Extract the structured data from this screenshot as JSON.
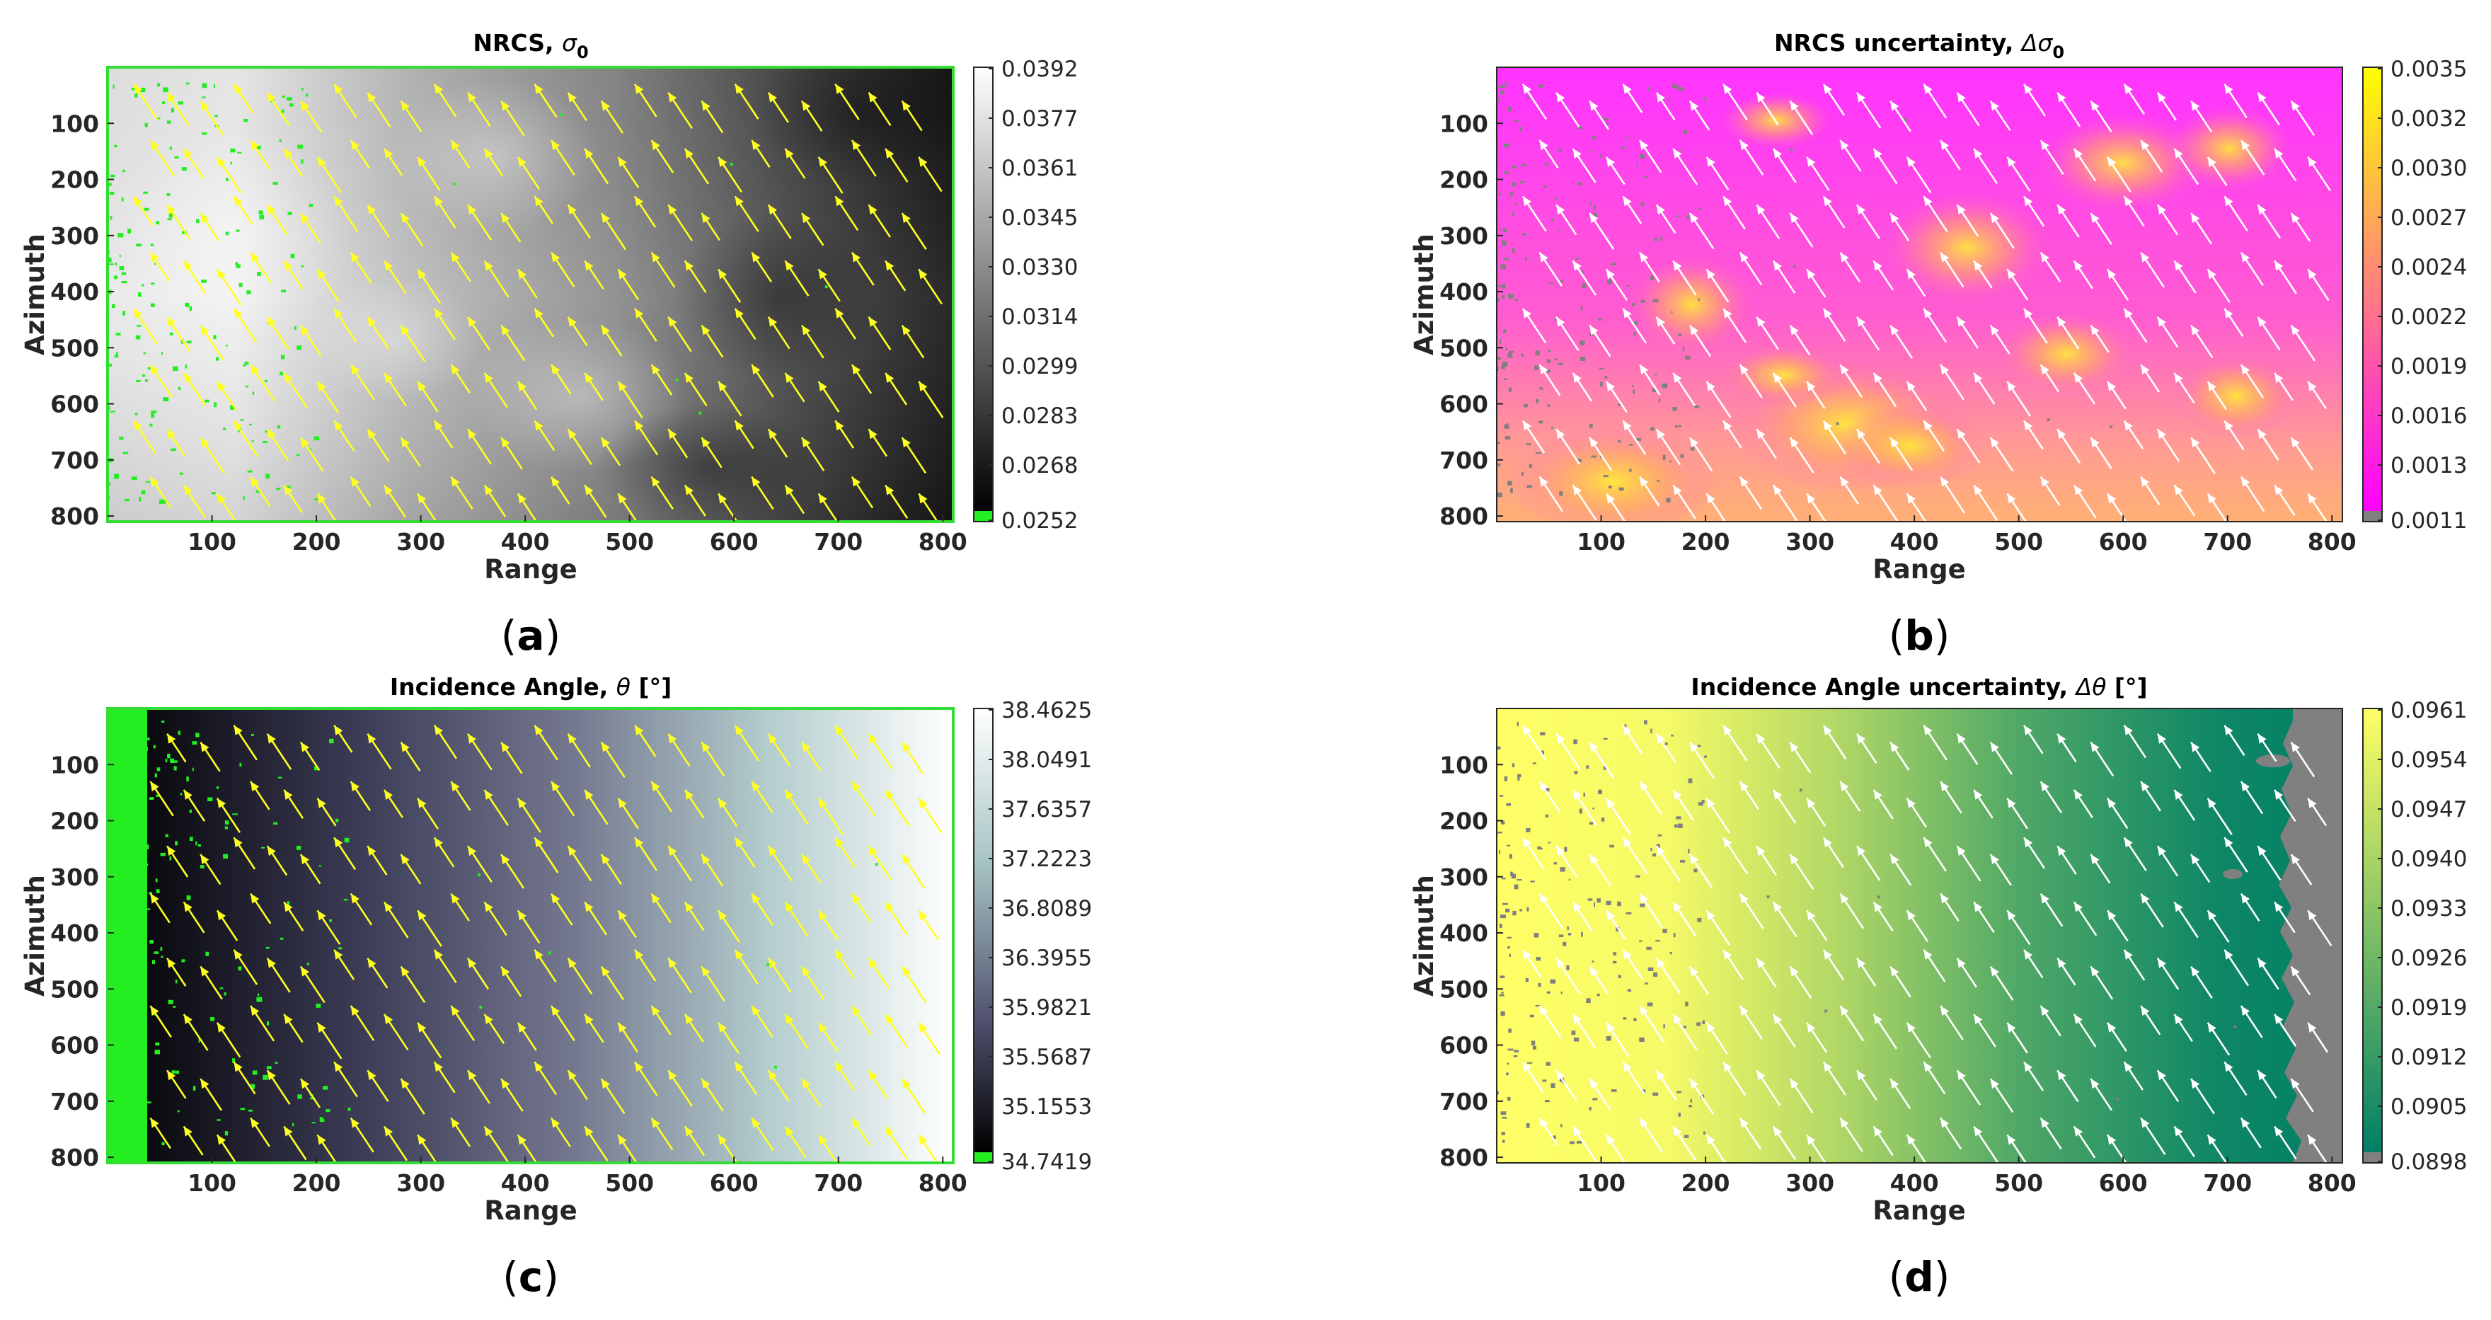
{
  "chart_data": [
    {
      "panel": "a",
      "type": "heatmap",
      "title": "NRCS, σ0",
      "title_main": "NRCS, ",
      "title_symbol": "σ",
      "title_sub": "0",
      "xlabel": "Range",
      "ylabel": "Azimuth",
      "xlim": [
        0,
        810
      ],
      "ylim": [
        0,
        810
      ],
      "xticks": [
        100,
        200,
        300,
        400,
        500,
        600,
        700,
        800
      ],
      "yticks": [
        100,
        200,
        300,
        400,
        500,
        600,
        700,
        800
      ],
      "colormap": "gray",
      "arrow_color": "#ffff22",
      "flag_color": "#22ee22",
      "border_color": "#33dd33",
      "colorbar": {
        "ticks": [
          "0.0392",
          "0.0377",
          "0.0361",
          "0.0345",
          "0.0330",
          "0.0314",
          "0.0299",
          "0.0283",
          "0.0268",
          "0.0252"
        ],
        "colors": [
          "#ffffff",
          "#000000"
        ],
        "low_color": "#22ee22"
      }
    },
    {
      "panel": "b",
      "type": "heatmap",
      "title": "NRCS uncertainty, Δσ0",
      "title_main": "NRCS uncertainty, ",
      "title_symbol": "Δσ",
      "title_sub": "0",
      "xlabel": "Range",
      "ylabel": "Azimuth",
      "xlim": [
        0,
        810
      ],
      "ylim": [
        0,
        810
      ],
      "xticks": [
        100,
        200,
        300,
        400,
        500,
        600,
        700,
        800
      ],
      "yticks": [
        100,
        200,
        300,
        400,
        500,
        600,
        700,
        800
      ],
      "colormap": "spring",
      "arrow_color": "#ffffff",
      "flag_color": "#808080",
      "border_color": "none",
      "colorbar": {
        "ticks": [
          "0.0035",
          "0.0032",
          "0.0030",
          "0.0027",
          "0.0024",
          "0.0022",
          "0.0019",
          "0.0016",
          "0.0013",
          "0.0011"
        ],
        "colors": [
          "#ffff00",
          "#ff00ff"
        ],
        "low_color": "#808080"
      }
    },
    {
      "panel": "c",
      "type": "heatmap",
      "title": "Incidence Angle, θ [°]",
      "title_main": "Incidence Angle, ",
      "title_symbol": "θ",
      "title_sub": "",
      "title_suffix": " [°]",
      "xlabel": "Range",
      "ylabel": "Azimuth",
      "xlim": [
        0,
        810
      ],
      "ylim": [
        0,
        810
      ],
      "xticks": [
        100,
        200,
        300,
        400,
        500,
        600,
        700,
        800
      ],
      "yticks": [
        100,
        200,
        300,
        400,
        500,
        600,
        700,
        800
      ],
      "colormap": "bone",
      "arrow_color": "#ffff22",
      "flag_color": "#22ee22",
      "border_color": "#33dd33",
      "colorbar": {
        "ticks": [
          "38.4625",
          "38.0491",
          "37.6357",
          "37.2223",
          "36.8089",
          "36.3955",
          "35.9821",
          "35.5687",
          "35.1553",
          "34.7419"
        ],
        "colors": [
          "#ffffff",
          "#000000"
        ],
        "low_color": "#22ee22"
      }
    },
    {
      "panel": "d",
      "type": "heatmap",
      "title": "Incidence Angle uncertainty, Δθ [°]",
      "title_main": "Incidence Angle uncertainty, ",
      "title_symbol": "Δθ",
      "title_sub": "",
      "title_suffix": " [°]",
      "xlabel": "Range",
      "ylabel": "Azimuth",
      "xlim": [
        0,
        810
      ],
      "ylim": [
        0,
        810
      ],
      "xticks": [
        100,
        200,
        300,
        400,
        500,
        600,
        700,
        800
      ],
      "yticks": [
        100,
        200,
        300,
        400,
        500,
        600,
        700,
        800
      ],
      "colormap": "summer",
      "arrow_color": "#ffffff",
      "flag_color": "#808080",
      "border_color": "none",
      "colorbar": {
        "ticks": [
          "0.0961",
          "0.0954",
          "0.0947",
          "0.0940",
          "0.0933",
          "0.0926",
          "0.0919",
          "0.0912",
          "0.0905",
          "0.0898"
        ],
        "colors": [
          "#ffff66",
          "#007f66"
        ],
        "low_color": "#808080"
      }
    }
  ],
  "panel_labels": [
    "a",
    "b",
    "c",
    "d"
  ],
  "wind_direction": "arrows point toward upper-left"
}
